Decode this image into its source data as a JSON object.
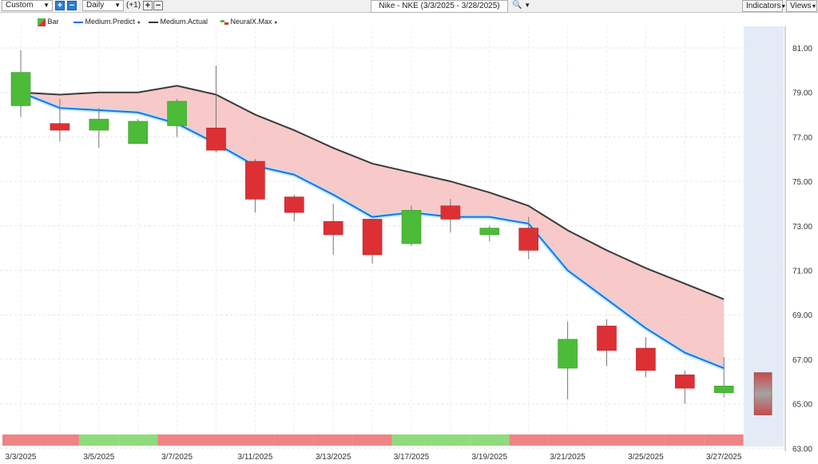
{
  "toolbar": {
    "mode_value": "Custom",
    "period_value": "Daily",
    "offset_label": "(+1)",
    "plus_glyph": "+",
    "minus_glyph": "−",
    "chart_title": "Nike - NKE (3/3/2025 - 3/28/2025)",
    "search_glyph": "🔍",
    "indicators_label": "Indicators",
    "views_label": "Views"
  },
  "legend": {
    "bar_label": "Bar",
    "predict_label": "Medium.Predict",
    "actual_label": "Medium.Actual",
    "neuralx_label": "NeuralX.Max"
  },
  "colors": {
    "up": "#4cbb38",
    "down": "#dc3035",
    "predict": "#1f6fe8",
    "actual": "#3a3a3a",
    "band_fill": "#f4b7b7",
    "band_green": "#8fdc7c",
    "band_red": "#ee8484",
    "forecast_bg": "#e3ecf6"
  },
  "chart_data": {
    "type": "candlestick",
    "ylim": [
      63,
      82
    ],
    "y_ticks": [
      "63.00",
      "65.00",
      "67.00",
      "69.00",
      "71.00",
      "73.00",
      "75.00",
      "77.00",
      "79.00",
      "81.00"
    ],
    "x_labels": [
      "3/3/2025",
      "3/5/2025",
      "3/7/2025",
      "3/11/2025",
      "3/13/2025",
      "3/17/2025",
      "3/19/2025",
      "3/21/2025",
      "3/25/2025",
      "3/27/2025"
    ],
    "candles": [
      {
        "date": "3/3/2025",
        "open": 78.4,
        "high": 80.9,
        "low": 77.9,
        "close": 79.9
      },
      {
        "date": "3/4/2025",
        "open": 77.6,
        "high": 78.7,
        "low": 76.8,
        "close": 77.3
      },
      {
        "date": "3/5/2025",
        "open": 77.3,
        "high": 78.3,
        "low": 76.5,
        "close": 77.8
      },
      {
        "date": "3/6/2025",
        "open": 76.7,
        "high": 77.8,
        "low": 76.7,
        "close": 77.7
      },
      {
        "date": "3/7/2025",
        "open": 77.5,
        "high": 78.7,
        "low": 77.0,
        "close": 78.6
      },
      {
        "date": "3/10/2025",
        "open": 77.4,
        "high": 80.2,
        "low": 76.3,
        "close": 76.4
      },
      {
        "date": "3/11/2025",
        "open": 75.9,
        "high": 76.0,
        "low": 73.6,
        "close": 74.2
      },
      {
        "date": "3/12/2025",
        "open": 74.3,
        "high": 74.4,
        "low": 73.2,
        "close": 73.6
      },
      {
        "date": "3/13/2025",
        "open": 73.2,
        "high": 74.0,
        "low": 71.7,
        "close": 72.6
      },
      {
        "date": "3/14/2025",
        "open": 73.3,
        "high": 73.3,
        "low": 71.3,
        "close": 71.7
      },
      {
        "date": "3/17/2025",
        "open": 72.2,
        "high": 73.9,
        "low": 72.1,
        "close": 73.7
      },
      {
        "date": "3/18/2025",
        "open": 73.9,
        "high": 74.2,
        "low": 72.7,
        "close": 73.3
      },
      {
        "date": "3/19/2025",
        "open": 72.6,
        "high": 73.0,
        "low": 72.3,
        "close": 72.9
      },
      {
        "date": "3/20/2025",
        "open": 72.9,
        "high": 73.4,
        "low": 71.5,
        "close": 71.9
      },
      {
        "date": "3/21/2025",
        "open": 66.6,
        "high": 68.7,
        "low": 65.2,
        "close": 67.9
      },
      {
        "date": "3/24/2025",
        "open": 68.5,
        "high": 68.8,
        "low": 66.7,
        "close": 67.4
      },
      {
        "date": "3/25/2025",
        "open": 67.5,
        "high": 68.0,
        "low": 66.2,
        "close": 66.5
      },
      {
        "date": "3/26/2025",
        "open": 66.3,
        "high": 66.5,
        "low": 65.0,
        "close": 65.7
      },
      {
        "date": "3/27/2025",
        "open": 65.5,
        "high": 67.1,
        "low": 65.3,
        "close": 65.8
      }
    ],
    "forecast_candle": {
      "date": "3/28/2025",
      "open": 66.4,
      "close": 64.5
    },
    "medium_predict": [
      79.0,
      78.3,
      78.2,
      78.1,
      77.6,
      76.7,
      75.7,
      75.3,
      74.4,
      73.4,
      73.6,
      73.4,
      73.4,
      73.1,
      71.0,
      69.7,
      68.4,
      67.3,
      66.6
    ],
    "medium_actual": [
      79.0,
      78.9,
      79.0,
      79.0,
      79.3,
      78.9,
      78.0,
      77.3,
      76.5,
      75.8,
      75.4,
      75.0,
      74.5,
      73.9,
      72.8,
      71.9,
      71.1,
      70.4,
      69.7
    ],
    "neuralx_band": [
      "red",
      "red",
      "green",
      "green",
      "red",
      "red",
      "red",
      "red",
      "red",
      "red",
      "green",
      "green",
      "green",
      "red",
      "red",
      "red",
      "red",
      "red",
      "red"
    ]
  }
}
